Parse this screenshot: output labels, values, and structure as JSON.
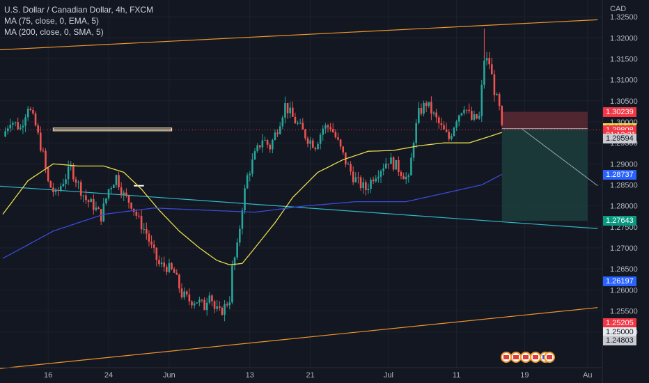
{
  "legend": {
    "title": "U.S. Dollar / Canadian Dollar, 4h, FXCM",
    "ma1": "MA (75, close, 0, EMA, 5)",
    "ma2": "MA (200, close, 0, SMA, 5)"
  },
  "currency": "CAD",
  "colors": {
    "background": "#131722",
    "up": "#26a69a",
    "down": "#ef5350",
    "ema75": "#e8dd4a",
    "sma200": "#3a4bd8",
    "channel": "#f0962a",
    "trendline": "#2fb8c8",
    "stop_zone": "#5c2a33",
    "target_zone": "#1d3c3c"
  },
  "chart_data": {
    "type": "candlestick",
    "symbol": "USDCAD",
    "timeframe": "4h",
    "ylim": [
      1.2415,
      1.329
    ],
    "y_ticks": [
      "1.32500",
      "1.32000",
      "1.31500",
      "1.31000",
      "1.30500",
      "1.30000",
      "1.29500",
      "1.29000",
      "1.28500",
      "1.28000",
      "1.27500",
      "1.27000",
      "1.26500",
      "1.26000",
      "1.25500",
      "1.25000"
    ],
    "x_ticks": [
      "16",
      "24",
      "Jun",
      "13",
      "21",
      "Jul",
      "11",
      "19",
      "Au"
    ],
    "close_path": [
      [
        0,
        1.2965
      ],
      [
        3,
        1.3005
      ],
      [
        7,
        1.2985
      ],
      [
        10,
        1.304
      ],
      [
        13,
        1.299
      ],
      [
        16,
        1.292
      ],
      [
        18,
        1.2855
      ],
      [
        21,
        1.2825
      ],
      [
        24,
        1.286
      ],
      [
        27,
        1.289
      ],
      [
        30,
        1.285
      ],
      [
        33,
        1.2815
      ],
      [
        36,
        1.28
      ],
      [
        39,
        1.2775
      ],
      [
        42,
        1.284
      ],
      [
        45,
        1.287
      ],
      [
        48,
        1.2825
      ],
      [
        51,
        1.2805
      ],
      [
        54,
        1.2765
      ],
      [
        57,
        1.2735
      ],
      [
        59,
        1.27
      ],
      [
        62,
        1.266
      ],
      [
        65,
        1.2655
      ],
      [
        68,
        1.264
      ],
      [
        71,
        1.259
      ],
      [
        74,
        1.2575
      ],
      [
        77,
        1.2575
      ],
      [
        80,
        1.256
      ],
      [
        82,
        1.26
      ],
      [
        84,
        1.2555
      ],
      [
        86,
        1.2545
      ],
      [
        88,
        1.256
      ],
      [
        90,
        1.258
      ],
      [
        91,
        1.265
      ],
      [
        93,
        1.27
      ],
      [
        95,
        1.28
      ],
      [
        97,
        1.287
      ],
      [
        100,
        1.292
      ],
      [
        103,
        1.296
      ],
      [
        106,
        1.294
      ],
      [
        109,
        1.2985
      ],
      [
        112,
        1.304
      ],
      [
        115,
        1.301
      ],
      [
        118,
        1.2985
      ],
      [
        121,
        1.296
      ],
      [
        124,
        1.2945
      ],
      [
        127,
        1.2985
      ],
      [
        130,
        1.299
      ],
      [
        133,
        1.295
      ],
      [
        136,
        1.2905
      ],
      [
        139,
        1.287
      ],
      [
        141,
        1.2855
      ],
      [
        144,
        1.284
      ],
      [
        147,
        1.287
      ],
      [
        150,
        1.289
      ],
      [
        153,
        1.291
      ],
      [
        156,
        1.2895
      ],
      [
        159,
        1.2875
      ],
      [
        161,
        1.286
      ],
      [
        163,
        1.296
      ],
      [
        165,
        1.302
      ],
      [
        168,
        1.3045
      ],
      [
        171,
        1.3015
      ],
      [
        174,
        1.2985
      ],
      [
        177,
        1.296
      ],
      [
        180,
        1.301
      ],
      [
        183,
        1.304
      ],
      [
        186,
        1.3005
      ],
      [
        189,
        1.301
      ],
      [
        191,
        1.315
      ],
      [
        193,
        1.314
      ],
      [
        195,
        1.3075
      ],
      [
        197,
        1.303
      ],
      [
        198,
        1.2981
      ]
    ],
    "bar_count": 199,
    "noise_seed": 7,
    "ema75": [
      [
        0,
        1.278
      ],
      [
        10,
        1.286
      ],
      [
        20,
        1.29
      ],
      [
        30,
        1.2895
      ],
      [
        40,
        1.2895
      ],
      [
        48,
        1.288
      ],
      [
        55,
        1.284
      ],
      [
        62,
        1.279
      ],
      [
        70,
        1.274
      ],
      [
        78,
        1.27
      ],
      [
        85,
        1.267
      ],
      [
        90,
        1.266
      ],
      [
        95,
        1.2663
      ],
      [
        100,
        1.27
      ],
      [
        108,
        1.276
      ],
      [
        115,
        1.282
      ],
      [
        125,
        1.288
      ],
      [
        135,
        1.291
      ],
      [
        145,
        1.293
      ],
      [
        155,
        1.2932
      ],
      [
        165,
        1.2943
      ],
      [
        175,
        1.295
      ],
      [
        185,
        1.295
      ],
      [
        193,
        1.2965
      ],
      [
        198,
        1.2975
      ]
    ],
    "sma200": [
      [
        0,
        1.2675
      ],
      [
        20,
        1.274
      ],
      [
        40,
        1.278
      ],
      [
        60,
        1.2795
      ],
      [
        80,
        1.279
      ],
      [
        100,
        1.2785
      ],
      [
        120,
        1.28
      ],
      [
        140,
        1.281
      ],
      [
        160,
        1.281
      ],
      [
        175,
        1.283
      ],
      [
        190,
        1.285
      ],
      [
        198,
        1.2875
      ]
    ],
    "channel_upper": [
      [
        -6,
        1.317
      ],
      [
        236,
        1.3243
      ]
    ],
    "channel_lower": [
      [
        -6,
        1.241
      ],
      [
        236,
        1.2558
      ]
    ],
    "trendline": [
      [
        -6,
        1.2849
      ],
      [
        236,
        1.2746
      ]
    ],
    "resistance_line": {
      "from": 20,
      "to": 67,
      "price": 1.2982
    },
    "small_level": {
      "from": 52,
      "to": 56,
      "price": 1.2848
    },
    "position": {
      "from": 198,
      "to": 232,
      "entry": 1.2981,
      "stop": 1.30239,
      "target": 1.27643
    },
    "projection": [
      [
        206,
        1.2983
      ],
      [
        236,
        1.2848
      ]
    ],
    "price_labels": [
      {
        "text": "1.30239",
        "price": 1.30239,
        "bg": "#f23645",
        "fg": "#ffffff"
      },
      {
        "text": "1.29847",
        "price": 1.29847,
        "bg": "#e8dd4a",
        "fg": "#131722"
      },
      {
        "text": "1.29808",
        "price": 1.29808,
        "bg": "#f23645",
        "fg": "#ffffff"
      },
      {
        "text": "01:13:21",
        "price": 1.2968,
        "bg": "#f23645",
        "fg": "#ffffff"
      },
      {
        "text": "1.29594",
        "price": 1.29594,
        "bg": "#c9cbd1",
        "fg": "#131722"
      },
      {
        "text": "1.28737",
        "price": 1.28737,
        "bg": "#2962ff",
        "fg": "#ffffff"
      },
      {
        "text": "1.27643",
        "price": 1.27643,
        "bg": "#089981",
        "fg": "#ffffff"
      },
      {
        "text": "1.26197",
        "price": 1.26197,
        "bg": "#2962ff",
        "fg": "#ffffff"
      },
      {
        "text": "1.25205",
        "price": 1.25205,
        "bg": "#f23645",
        "fg": "#ffffff"
      },
      {
        "text": "1.25000",
        "price": 1.25,
        "bg": "#e8eaed",
        "fg": "#131722"
      },
      {
        "text": "1.24803",
        "price": 1.24803,
        "bg": "#c9cbd1",
        "fg": "#131722"
      }
    ]
  }
}
